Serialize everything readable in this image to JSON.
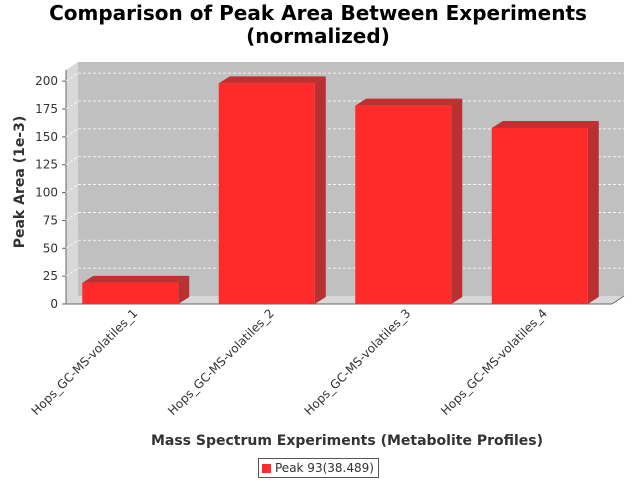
{
  "chart_data": {
    "type": "bar",
    "title": [
      "Comparison of Peak Area Between Experiments",
      "(normalized)"
    ],
    "xlabel": "Mass Spectrum Experiments (Metabolite Profiles)",
    "ylabel": "Peak Area (1e-3)",
    "categories": [
      "Hops_GC-MS-volatiles_1",
      "Hops_GC-MS-volatiles_2",
      "Hops_GC-MS-volatiles_3",
      "Hops_GC-MS-volatiles_4"
    ],
    "series": [
      {
        "name": "Peak 93(38.489)",
        "values": [
          19,
          198,
          178,
          158
        ],
        "color": "#ff2a2a"
      }
    ],
    "ylim": [
      0,
      210
    ],
    "yticks": [
      0,
      25,
      50,
      75,
      100,
      125,
      150,
      175,
      200
    ],
    "grid": true,
    "legend_position": "bottom-center",
    "colors": {
      "plot_background": "#c0c0c0",
      "plot_wall": "#d8d8d8",
      "bar_face": "#ff2a2a"
    }
  }
}
